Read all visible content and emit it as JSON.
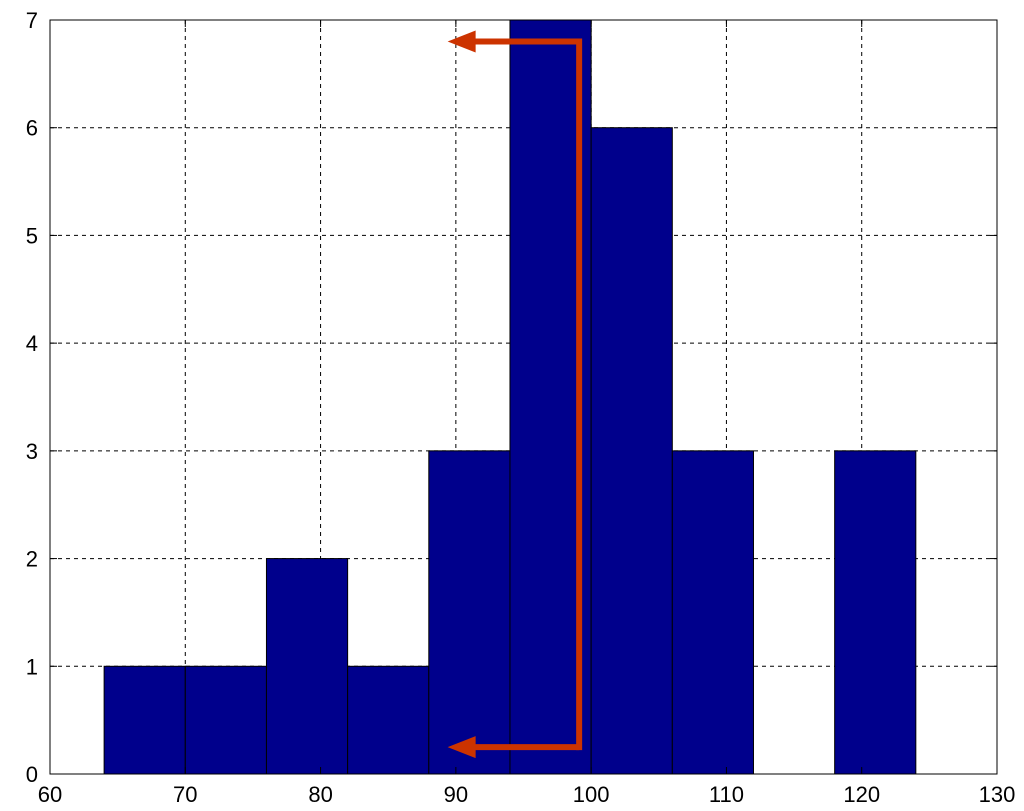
{
  "chart_data": {
    "type": "bar",
    "title": "",
    "xlabel": "",
    "ylabel": "",
    "xlim": [
      60,
      130
    ],
    "ylim": [
      0,
      7
    ],
    "grid": true,
    "grid_style": "dashed",
    "xticks": [
      60,
      70,
      80,
      90,
      100,
      110,
      120,
      130
    ],
    "yticks": [
      0,
      1,
      2,
      3,
      4,
      5,
      6,
      7
    ],
    "xtick_labels": [
      "60",
      "70",
      "80",
      "90",
      "100",
      "110",
      "120",
      "130"
    ],
    "ytick_labels": [
      "0",
      "1",
      "2",
      "3",
      "4",
      "5",
      "6",
      "7"
    ],
    "bins": [
      {
        "x0": 64,
        "x1": 70,
        "value": 1
      },
      {
        "x0": 70,
        "x1": 76,
        "value": 1
      },
      {
        "x0": 76,
        "x1": 82,
        "value": 2
      },
      {
        "x0": 82,
        "x1": 88,
        "value": 1
      },
      {
        "x0": 88,
        "x1": 94,
        "value": 3
      },
      {
        "x0": 94,
        "x1": 100,
        "value": 7
      },
      {
        "x0": 100,
        "x1": 106,
        "value": 6
      },
      {
        "x0": 106,
        "x1": 112,
        "value": 3
      },
      {
        "x0": 112,
        "x1": 118,
        "value": 0
      },
      {
        "x0": 118,
        "x1": 124,
        "value": 3
      }
    ],
    "bar_color": "#00008C",
    "bar_edge_color": "#000000",
    "annotation_arrow": {
      "color": "#CC3300",
      "x_vertical": 100,
      "y_top": 6.8,
      "y_bottom": 0.25,
      "x_arrow_tip": 88.8
    }
  }
}
